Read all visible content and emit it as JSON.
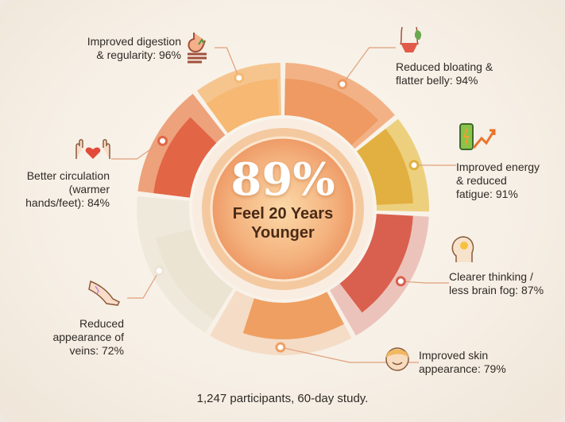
{
  "chart_data": {
    "type": "radial-bar",
    "center_value": "89%",
    "center_label": "Feel 20 Years Younger",
    "footnote": "1,247 participants, 60-day study.",
    "categories": [
      {
        "label": "Reduced bloating & flatter belly: 94%",
        "value": 94,
        "color": "#ee9a62",
        "light": "#f2b286",
        "icon": "belly-icon"
      },
      {
        "label": "Improved energy & reduced fatigue: 91%",
        "value": 91,
        "color": "#e2b040",
        "light": "#ecd07e",
        "icon": "battery-arrow-icon"
      },
      {
        "label": "Clearer thinking / less brain fog: 87%",
        "value": 87,
        "color": "#d9604e",
        "light": "#ecc3bb",
        "icon": "head-lightbulb-icon"
      },
      {
        "label": "Improved skin appearance: 79%",
        "value": 79,
        "color": "#ef9f62",
        "light": "#f4dcc6",
        "icon": "smiling-face-icon"
      },
      {
        "label": "Reduced appearance of veins: 72%",
        "value": 72,
        "color": "#ebe4d3",
        "light": "#efe9dc",
        "icon": "leg-icon"
      },
      {
        "label": "Better circulation (warmer hands/feet): 84%",
        "value": 84,
        "color": "#e26546",
        "light": "#eda27c",
        "icon": "hands-heart-icon"
      },
      {
        "label": "Improved digestion & regularity: 96%",
        "value": 96,
        "color": "#f6b872",
        "light": "#f6c58e",
        "icon": "stomach-icon"
      }
    ]
  },
  "labels": {
    "bloating": [
      "Reduced bloating &",
      "flatter belly: 94%"
    ],
    "energy": [
      "Improved energy",
      "& reduced",
      "fatigue: 91%"
    ],
    "brain": [
      "Clearer thinking /",
      "less brain fog: 87%"
    ],
    "skin": [
      "Improved skin",
      "appearance: 79%"
    ],
    "veins": [
      "Reduced",
      "appearance of",
      "veins: 72%"
    ],
    "circulation": [
      "Better circulation",
      "(warmer",
      "hands/feet): 84%"
    ],
    "digestion": [
      "Improved digestion",
      "& regularity: 96%"
    ]
  }
}
